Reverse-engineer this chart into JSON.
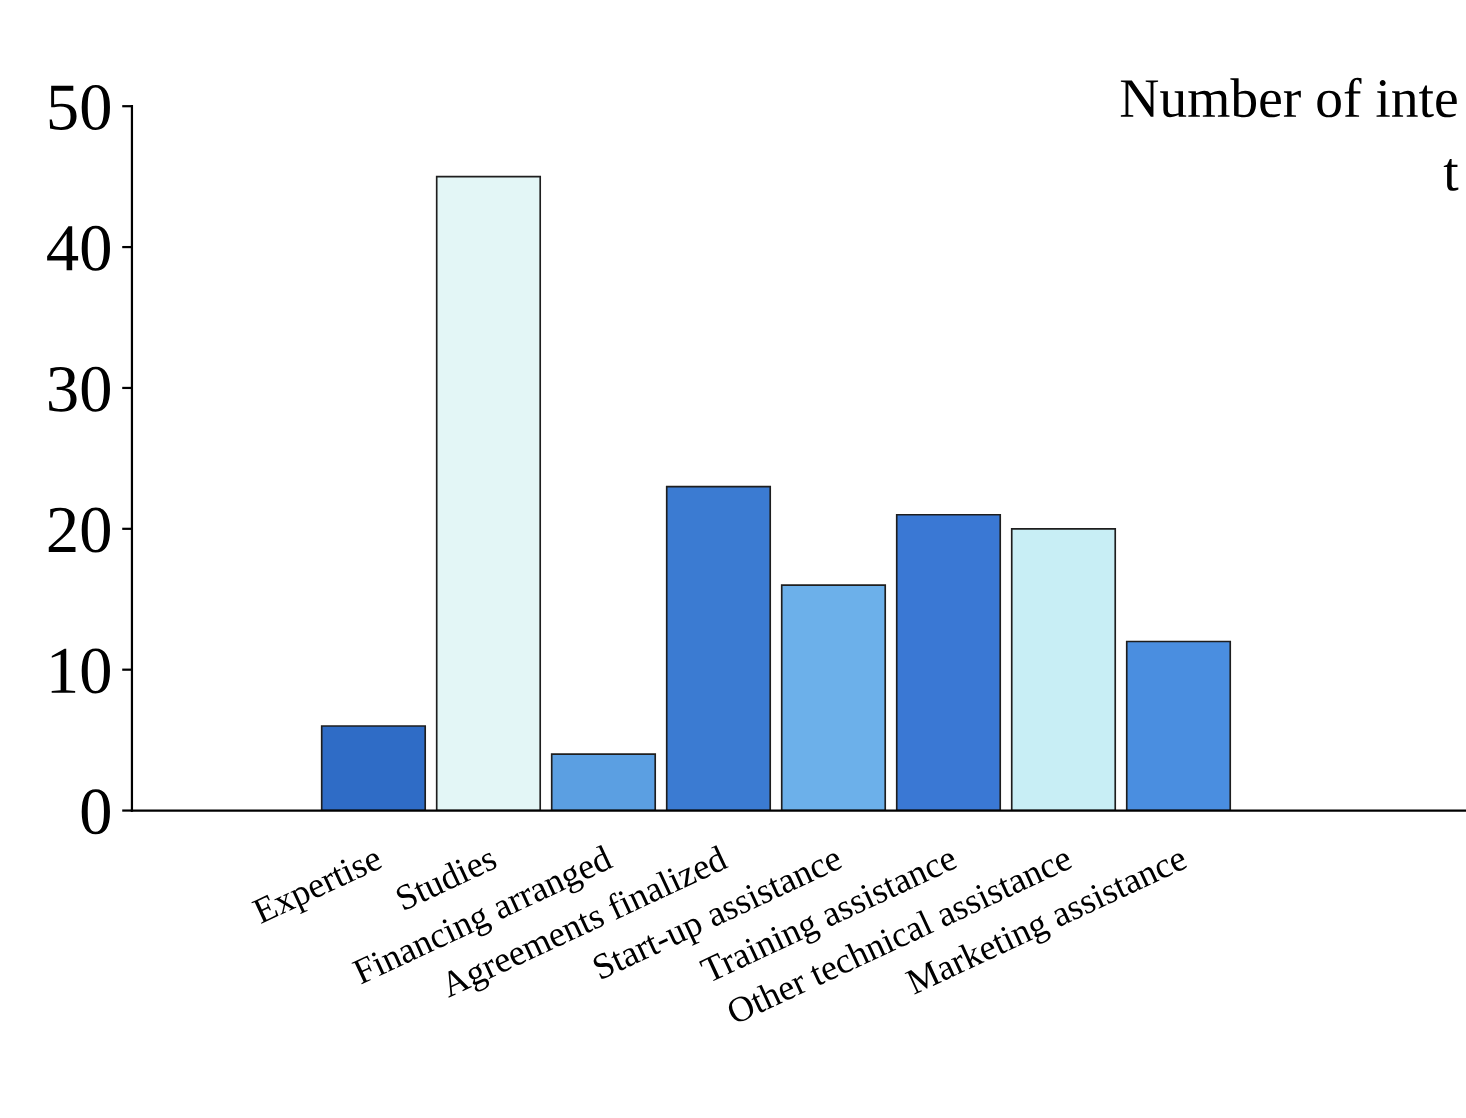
{
  "chart_data": {
    "type": "bar",
    "title": "Number of inte\nt",
    "categories": [
      "Expertise",
      "Studies",
      "Financing arranged",
      "Agreements finalized",
      "Start-up assistance",
      "Training assistance",
      "Other technical assistance",
      "Marketing assistance"
    ],
    "values": [
      6,
      45,
      4,
      23,
      16,
      21,
      20,
      12
    ],
    "colors": [
      "#2f6cc6",
      "#e3f6f6",
      "#5b9fe2",
      "#3b7bd2",
      "#6cb0ea",
      "#3a78d4",
      "#c8eef5",
      "#4a8ee0"
    ],
    "ylim": [
      0,
      50
    ],
    "yticks": [
      0,
      10,
      20,
      30,
      40,
      50
    ],
    "grid": false,
    "legend": false
  }
}
